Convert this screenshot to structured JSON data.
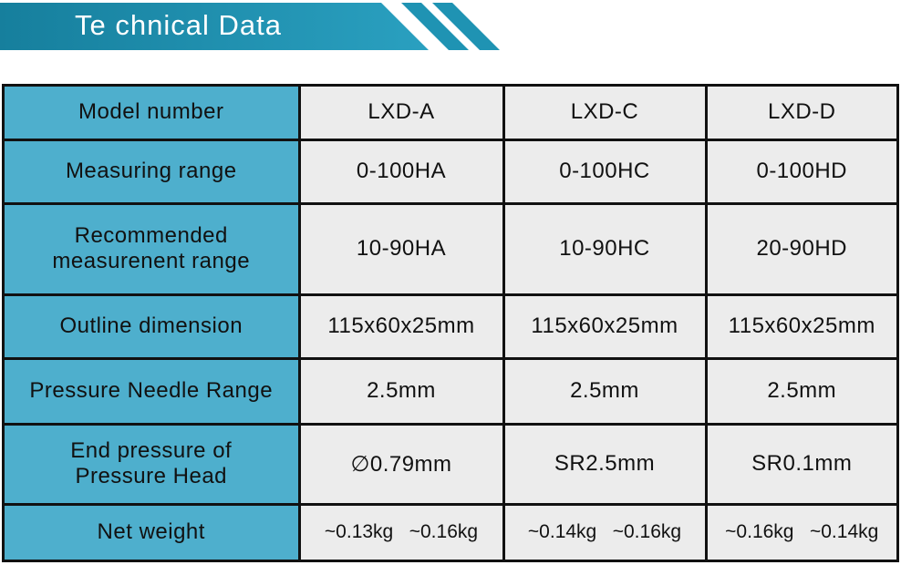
{
  "header": {
    "title": "Te chnical Data"
  },
  "table": {
    "rows": [
      [
        "Model number",
        "LXD-A",
        "LXD-C",
        "LXD-D"
      ],
      [
        "Measuring range",
        "0-100HA",
        "0-100HC",
        "0-100HD"
      ],
      [
        "Recommended\nmeasurenent range",
        "10-90HA",
        "10-90HC",
        "20-90HD"
      ],
      [
        "Outline dimension",
        "115x60x25mm",
        "115x60x25mm",
        "115x60x25mm"
      ],
      [
        "Pressure Needle Range",
        "2.5mm",
        "2.5mm",
        "2.5mm"
      ],
      [
        "End pressure of\nPressure Head",
        "∅0.79mm",
        "SR2.5mm",
        "SR0.1mm"
      ],
      [
        "Net weight",
        "~0.13kg   ~0.16kg",
        "~0.14kg   ~0.16kg",
        "~0.16kg   ~0.14kg"
      ]
    ]
  }
}
